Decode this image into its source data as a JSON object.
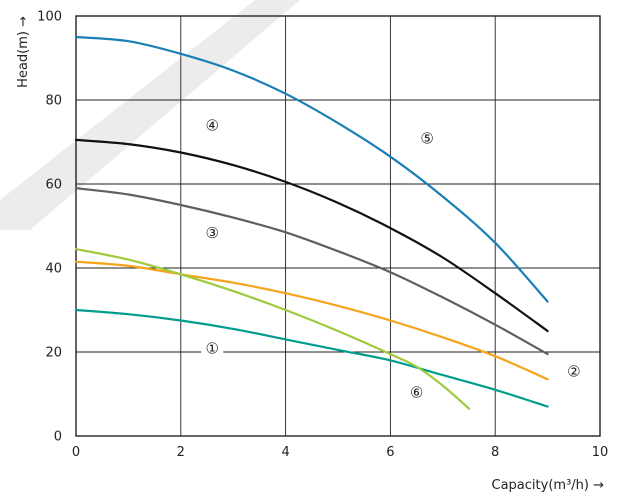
{
  "chart_data": {
    "type": "line",
    "xlabel": "Capacity(m³/h) →",
    "ylabel": "Head(m) →",
    "xlim": [
      0,
      10
    ],
    "ylim": [
      0,
      100
    ],
    "x_ticks": [
      0,
      2,
      4,
      6,
      8,
      10
    ],
    "y_ticks": [
      0,
      20,
      40,
      60,
      80,
      100
    ],
    "grid": true,
    "series": [
      {
        "name": "①",
        "color": "#009d8f",
        "x": [
          0,
          1,
          2,
          3,
          4,
          5,
          6,
          7,
          8,
          9
        ],
        "y": [
          30,
          29,
          27.5,
          25.5,
          23,
          20.5,
          18,
          14.5,
          11,
          7
        ]
      },
      {
        "name": "②",
        "color": "#f5a41b",
        "x": [
          0,
          1,
          2,
          3,
          4,
          5,
          6,
          7,
          8,
          9
        ],
        "y": [
          41.5,
          40.5,
          38.5,
          36.5,
          34,
          31,
          27.5,
          23.5,
          19,
          13.5
        ]
      },
      {
        "name": "③",
        "color": "#5f5f5f",
        "x": [
          0,
          1,
          2,
          3,
          4,
          5,
          6,
          7,
          8,
          9
        ],
        "y": [
          59,
          57.5,
          55,
          52,
          48.5,
          44,
          39,
          33,
          26.5,
          19.5
        ]
      },
      {
        "name": "④",
        "color": "#111111",
        "x": [
          0,
          1,
          2,
          3,
          4,
          5,
          6,
          7,
          8,
          9
        ],
        "y": [
          70.5,
          69.5,
          67.5,
          64.5,
          60.5,
          55.5,
          49.5,
          42.5,
          34,
          25
        ]
      },
      {
        "name": "⑤",
        "color": "#1a7fb5",
        "x": [
          0,
          1,
          2,
          3,
          4,
          5,
          6,
          7,
          8,
          9
        ],
        "y": [
          95,
          94,
          91,
          87,
          81.5,
          74.5,
          66.5,
          57,
          46,
          32
        ]
      },
      {
        "name": "⑥",
        "color": "#9ecb3c",
        "x": [
          0,
          1,
          2,
          3,
          4,
          5,
          6,
          6.5,
          7,
          7.5
        ],
        "y": [
          44.5,
          42,
          38.5,
          34.5,
          30,
          25,
          19.5,
          16.5,
          12,
          6.5
        ]
      }
    ],
    "annotations": [
      {
        "text": "①",
        "x": 2.6,
        "y": 21
      },
      {
        "text": "②",
        "x": 9.5,
        "y": 15.5
      },
      {
        "text": "③",
        "x": 2.6,
        "y": 48.5
      },
      {
        "text": "④",
        "x": 2.6,
        "y": 74
      },
      {
        "text": "⑤",
        "x": 6.7,
        "y": 71
      },
      {
        "text": "⑥",
        "x": 6.5,
        "y": 10.5
      }
    ]
  }
}
